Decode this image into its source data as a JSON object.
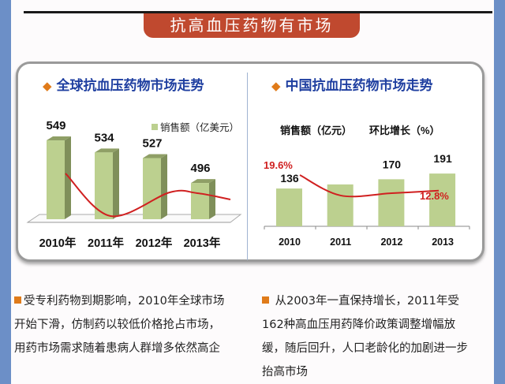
{
  "banner_title": "抗高血压药物有市场",
  "left_panel": {
    "title": "全球抗血压药物市场走势"
  },
  "right_panel": {
    "title": "中国抗血压药物市场走势"
  },
  "chart_data": [
    {
      "type": "bar",
      "title": "全球抗血压药物市场走势",
      "categories": [
        "2010年",
        "2011年",
        "2012年",
        "2013年"
      ],
      "series": [
        {
          "name": "销售额（亿美元）",
          "values": [
            549,
            534,
            527,
            496
          ],
          "labels": [
            "549",
            "534",
            "527",
            "496"
          ],
          "color": "#bcd08f"
        },
        {
          "name": "trend",
          "type": "line",
          "values_estimated": [
            3,
            -2.2,
            0.5,
            0
          ],
          "color": "#d02020"
        }
      ],
      "legend": {
        "label": "销售额（亿美元）",
        "placement": "top-right"
      }
    },
    {
      "type": "bar",
      "title": "中国抗血压药物市场走势",
      "categories": [
        "2010",
        "2011",
        "2012",
        "2013"
      ],
      "series": [
        {
          "name": "销售额（亿元）",
          "values": [
            136,
            151,
            170,
            191
          ],
          "labels": [
            "136",
            "",
            "170",
            "191"
          ],
          "color": "#bcd08f"
        },
        {
          "name": "环比增长（%）",
          "type": "line",
          "values": [
            19.6,
            11.5,
            12.4,
            12.8
          ],
          "labels": [
            "19.6%",
            "",
            "",
            "12.8%"
          ],
          "color": "#d02020"
        }
      ],
      "header_labels": [
        "销售额（亿元）",
        "环比增长（%）"
      ]
    }
  ],
  "notes": {
    "left": [
      "受专利药物到期影响，2010年全球市场",
      "开始下滑，仿制药以较低价格抢占市场，",
      "用药市场需求随着患病人群增多依然高企"
    ],
    "right": [
      " 从2003年一直保持增长，2011年受",
      "162种高血压用药降价政策调整增幅放",
      "缓，随后回升，人口老龄化的加剧进一步",
      "抬高市场"
    ]
  },
  "colors": {
    "frame": "#6c8fc7",
    "banner": "#c0492f",
    "title": "#1f3fa0",
    "accent": "#e07b1a",
    "bar": "#bcd08f",
    "line": "#d02020"
  }
}
